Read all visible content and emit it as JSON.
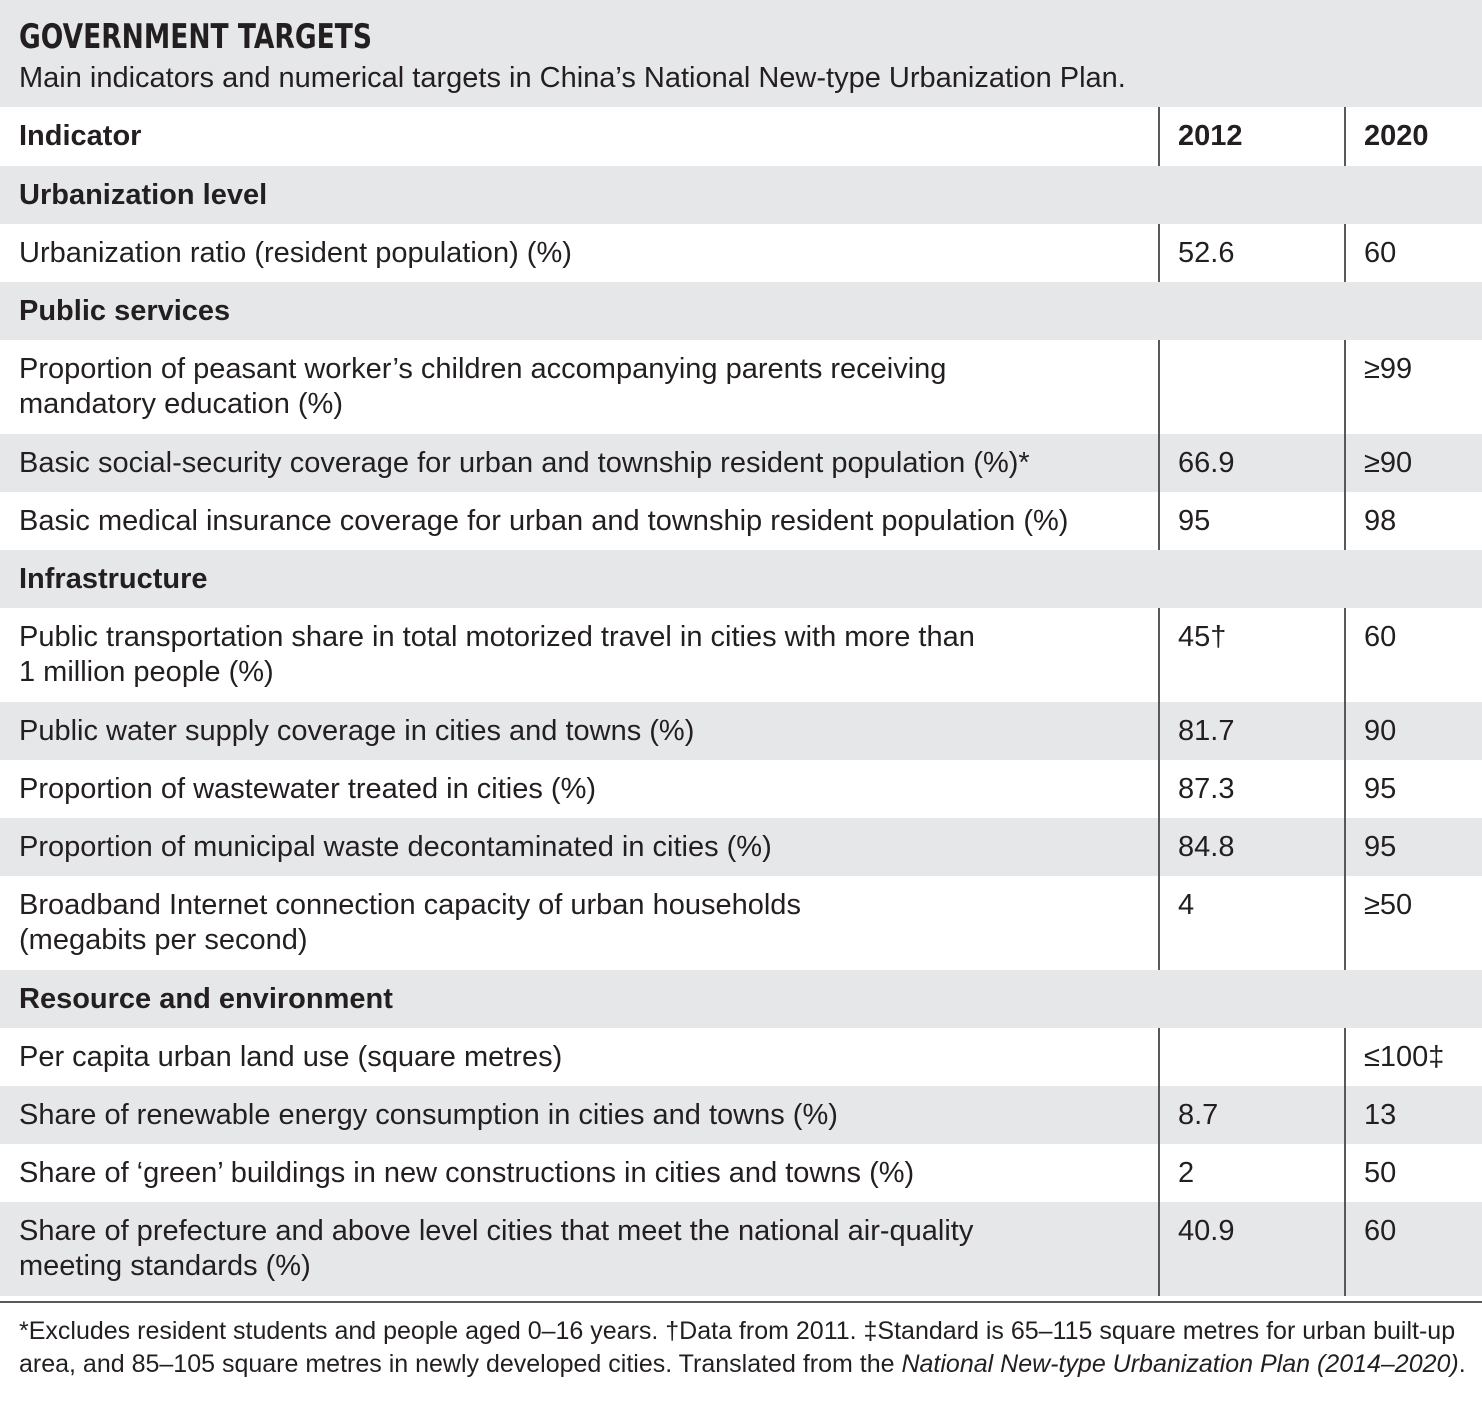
{
  "header": {
    "title": "GOVERNMENT TARGETS",
    "subtitle": "Main indicators and numerical targets in China’s National New-type Urbanization Plan."
  },
  "table": {
    "columns": [
      "Indicator",
      "2012",
      "2020"
    ],
    "sections": [
      {
        "name": "Urbanization level",
        "rows": [
          {
            "indicator": "Urbanization ratio (resident population) (%)",
            "y2012": "52.6",
            "y2020": "60"
          }
        ]
      },
      {
        "name": "Public services",
        "rows": [
          {
            "indicator": "Proportion of peasant worker’s children accompanying parents receiving",
            "indicator_line2": "mandatory education (%)",
            "y2012": "",
            "y2020": "≥99"
          },
          {
            "indicator": "Basic social-security coverage for urban and township resident population (%)*",
            "y2012": "66.9",
            "y2020": "≥90"
          },
          {
            "indicator": "Basic medical insurance coverage for urban and township resident population (%)",
            "y2012": "95",
            "y2020": "98"
          }
        ]
      },
      {
        "name": "Infrastructure",
        "rows": [
          {
            "indicator": "Public transportation share in total motorized travel in cities with more than",
            "indicator_line2": "1 million people (%)",
            "y2012": "45†",
            "y2020": "60"
          },
          {
            "indicator": "Public water supply coverage in cities and towns (%)",
            "y2012": "81.7",
            "y2020": "90"
          },
          {
            "indicator": "Proportion of wastewater treated in cities (%)",
            "y2012": "87.3",
            "y2020": "95"
          },
          {
            "indicator": "Proportion of municipal waste decontaminated in cities (%)",
            "y2012": "84.8",
            "y2020": "95"
          },
          {
            "indicator": "Broadband Internet connection capacity of urban households",
            "indicator_line2": "(megabits per second)",
            "y2012": "4",
            "y2020": "≥50"
          }
        ]
      },
      {
        "name": "Resource and environment",
        "rows": [
          {
            "indicator": "Per capita urban land use (square metres)",
            "y2012": "",
            "y2020": "≤100‡"
          },
          {
            "indicator": "Share of renewable energy consumption in cities and towns (%)",
            "y2012": "8.7",
            "y2020": "13"
          },
          {
            "indicator": "Share of ‘green’ buildings in new constructions in cities and towns (%)",
            "y2012": "2",
            "y2020": "50"
          },
          {
            "indicator": "Share of prefecture and above level cities that meet the national air-quality",
            "indicator_line2": "meeting standards (%)",
            "y2012": "40.9",
            "y2020": "60"
          }
        ]
      }
    ]
  },
  "footnote": {
    "text": "*Excludes resident students and people aged 0–16 years. †Data from 2011. ‡Standard is 65–115 square metres for urban built-up area, and 85–105 square metres in newly developed cities. Translated from the ",
    "source_title": "National New-type Urbanization Plan (2014–2020)",
    "end": "."
  },
  "colors": {
    "band": "#e6e7e9",
    "text": "#231f20",
    "rule": "#58595b"
  }
}
